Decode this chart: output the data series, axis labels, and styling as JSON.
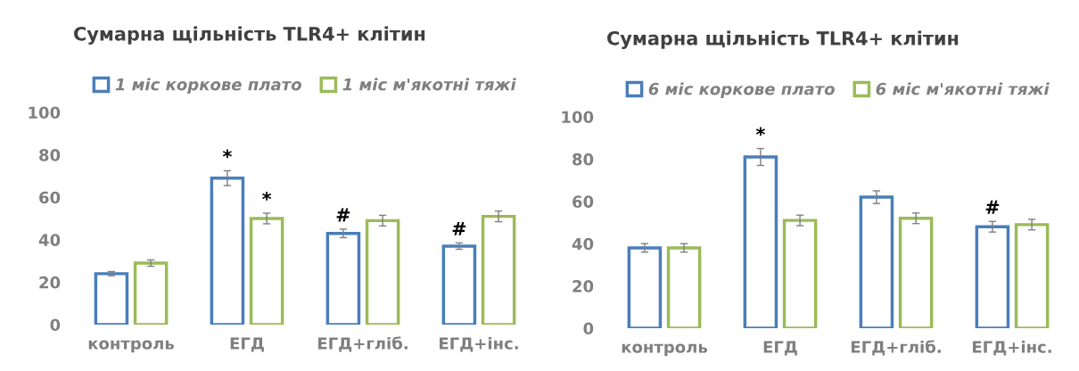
{
  "chart_data": [
    {
      "type": "bar",
      "title": "Сумарна щільність TLR4+ клітин",
      "categories": [
        "контроль",
        "ЕГД",
        "ЕГД+гліб.",
        "ЕГД+інс."
      ],
      "series": [
        {
          "name": "1 міс коркове плато",
          "color": "#4a7ebb",
          "values": [
            24,
            69,
            43,
            37
          ],
          "errors": [
            1,
            3.5,
            2,
            1.5
          ]
        },
        {
          "name": "1 міс м'якотні тяжі",
          "color": "#9bbb59",
          "values": [
            29,
            50,
            49,
            51
          ],
          "errors": [
            1.5,
            2.5,
            2.5,
            2.5
          ]
        }
      ],
      "ylim": [
        0,
        100
      ],
      "yticks": [
        0,
        20,
        40,
        60,
        80,
        100
      ],
      "legend": "top",
      "grid": false,
      "annotations": [
        {
          "text": "*",
          "x": "ЕГД",
          "y": 69
        },
        {
          "text": "*",
          "x": "ЕГД",
          "y": 50
        },
        {
          "text": "#",
          "x": "ЕГД+гліб.",
          "y": 43
        },
        {
          "text": "#",
          "x": "ЕГД+інс.",
          "y": 37
        }
      ]
    },
    {
      "type": "bar",
      "title": "Сумарна щільність TLR4+ клітин",
      "categories": [
        "контроль",
        "ЕГД",
        "ЕГД+гліб.",
        "ЕГД+інс."
      ],
      "series": [
        {
          "name": "6 міс коркове плато",
          "color": "#4a7ebb",
          "values": [
            38,
            81,
            62,
            48
          ],
          "errors": [
            2,
            4,
            3,
            2.5
          ]
        },
        {
          "name": "6 міс м'якотні тяжі",
          "color": "#9bbb59",
          "values": [
            38,
            51,
            52,
            49
          ],
          "errors": [
            2,
            2.5,
            2.5,
            2.5
          ]
        }
      ],
      "ylim": [
        0,
        100
      ],
      "yticks": [
        0,
        20,
        40,
        60,
        80,
        100
      ],
      "legend": "top",
      "grid": false,
      "annotations": [
        {
          "text": "*",
          "x": "ЕГД",
          "y": 81
        },
        {
          "text": "#",
          "x": "ЕГД+інс.",
          "y": 48
        }
      ]
    }
  ]
}
